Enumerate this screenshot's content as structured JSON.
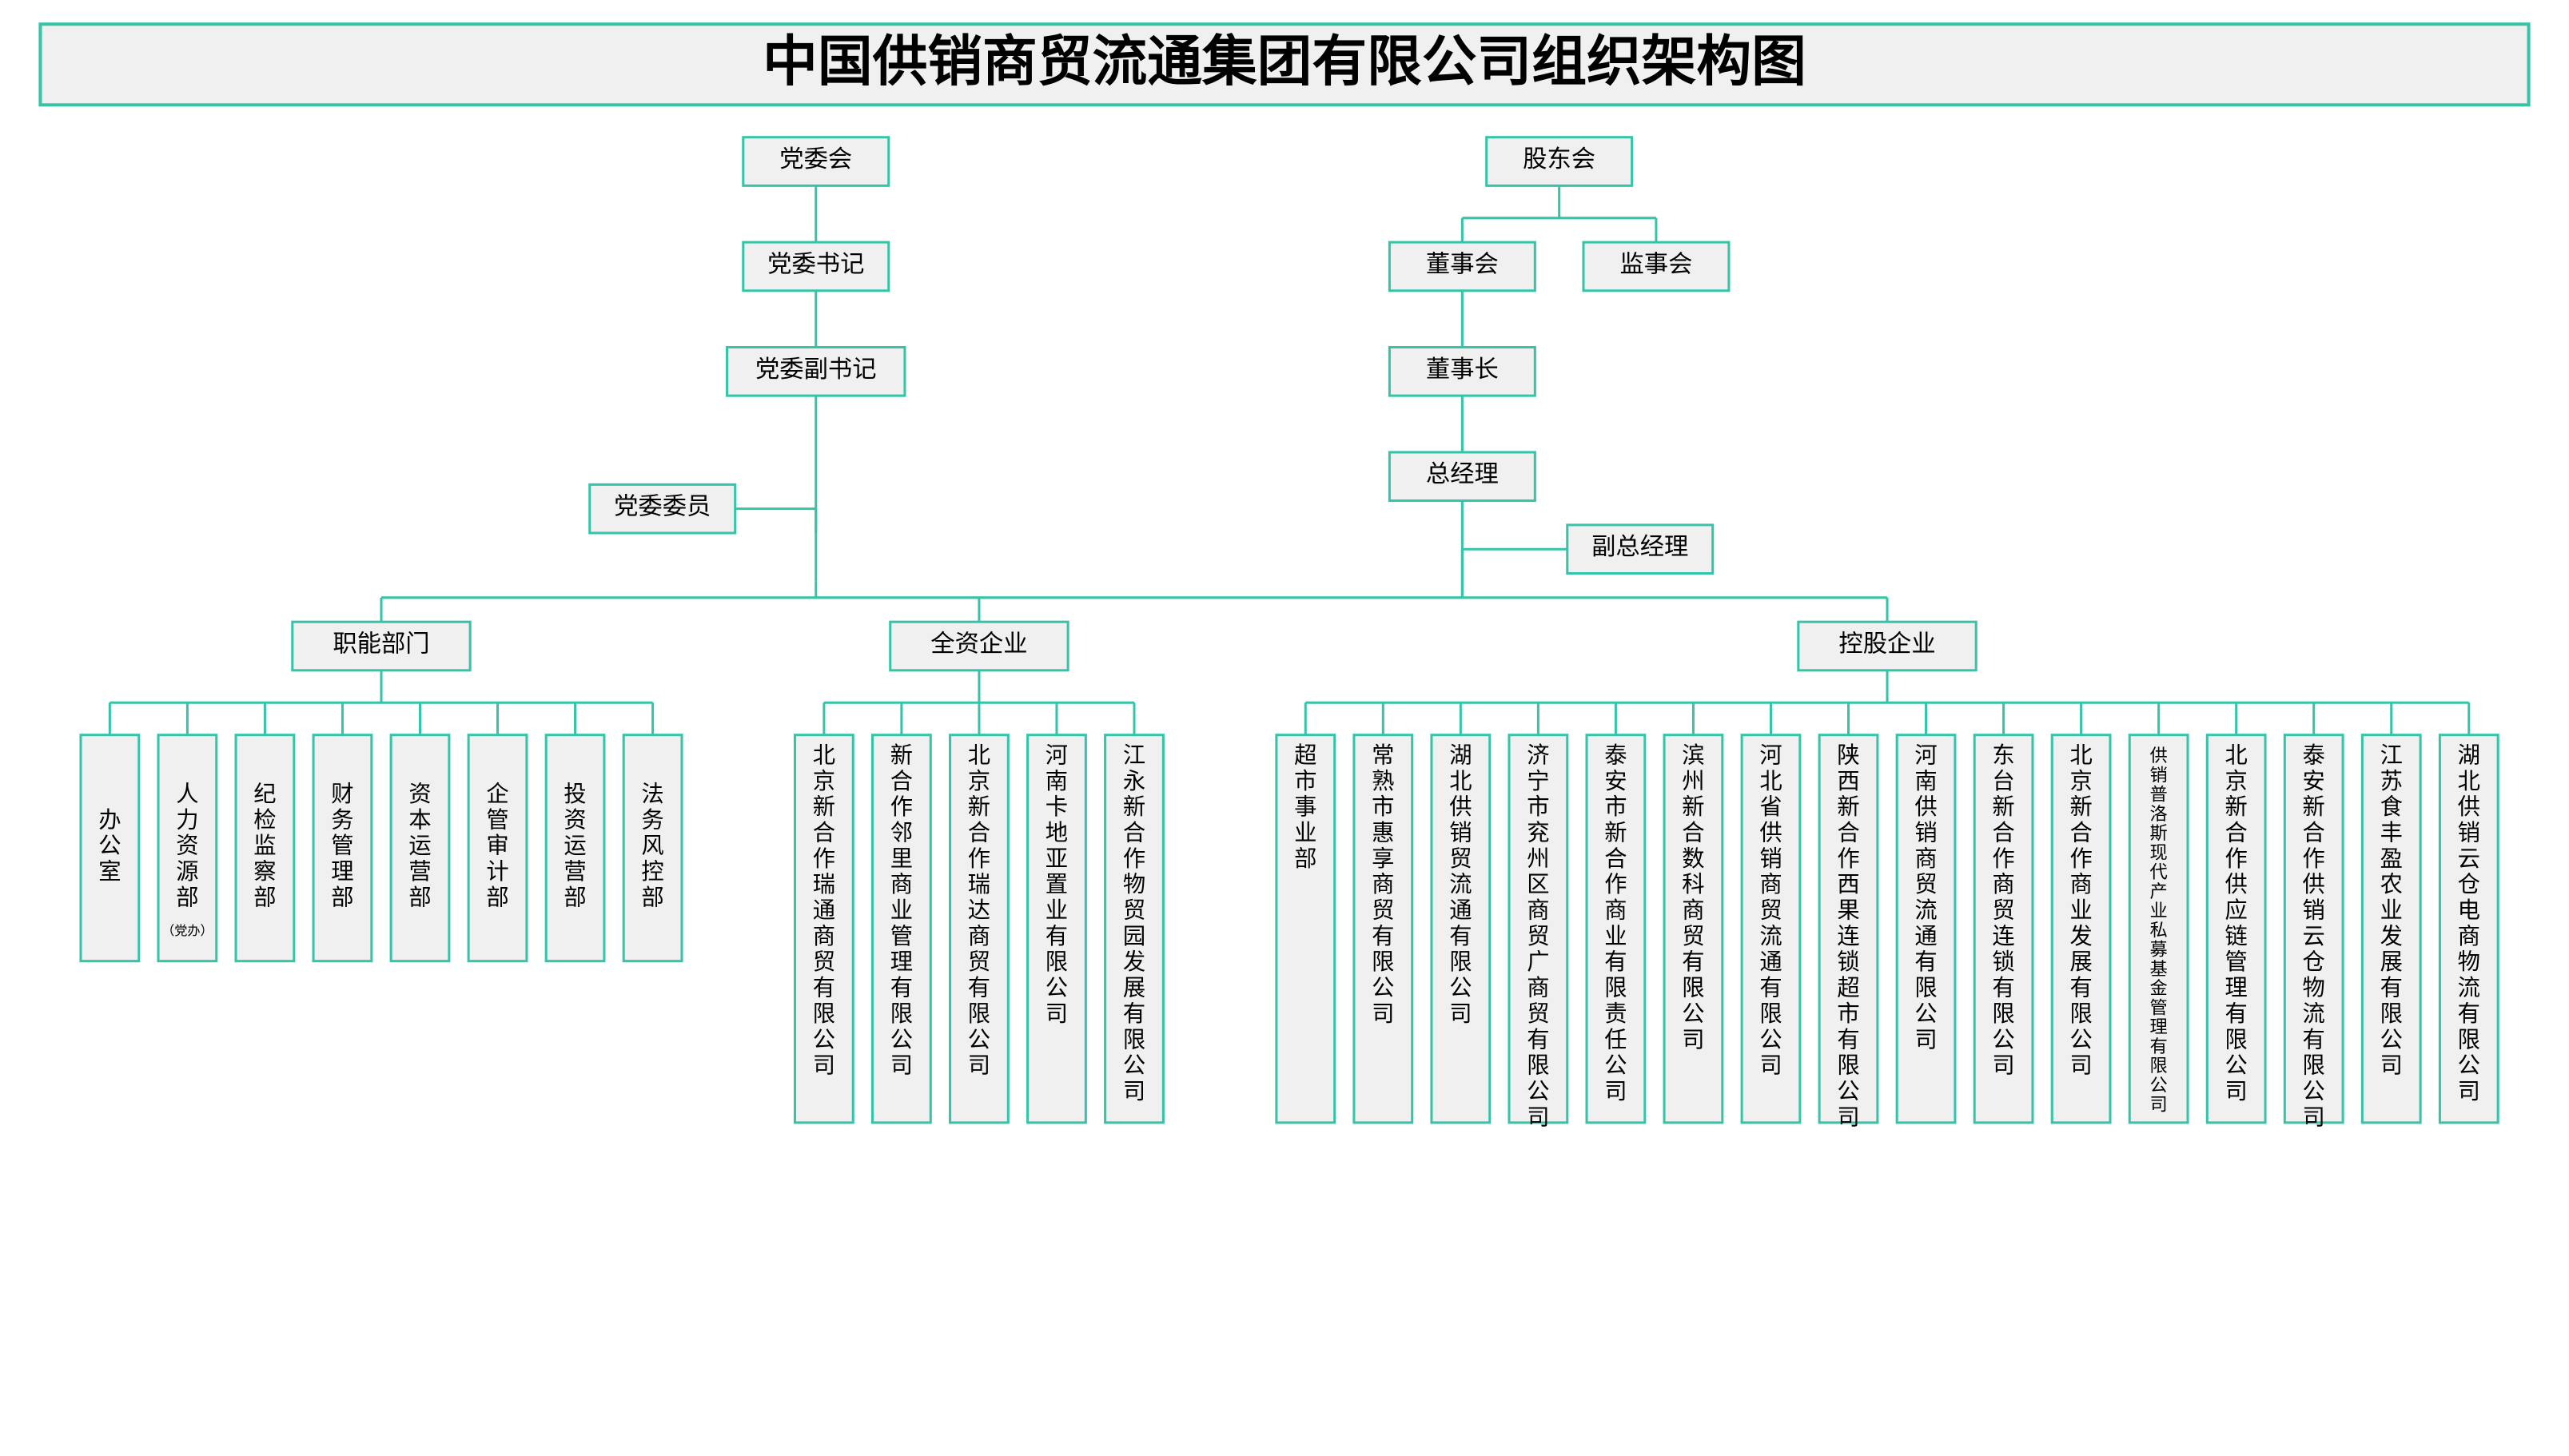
{
  "title": "中国供销商贸流通集团有限公司组织架构图",
  "colors": {
    "border": "#36c4a8",
    "fill": "#f0f0f0",
    "text": "#000000",
    "background": "#ffffff"
  },
  "leftChain": {
    "top": "党委会",
    "second": "党委书记",
    "third": "党委副书记",
    "branch": "党委委员"
  },
  "rightChain": {
    "top": "股东会",
    "boardL": "董事会",
    "boardR": "监事会",
    "chairman": "董事长",
    "gm": "总经理",
    "vgm": "副总经理"
  },
  "groups": [
    {
      "label": "职能部门",
      "items": [
        {
          "text": "办公室"
        },
        {
          "text": "人力资源部",
          "subtext": "（党办）"
        },
        {
          "text": "纪检监察部"
        },
        {
          "text": "财务管理部"
        },
        {
          "text": "资本运营部"
        },
        {
          "text": "企管审计部"
        },
        {
          "text": "投资运营部"
        },
        {
          "text": "法务风控部"
        }
      ]
    },
    {
      "label": "全资企业",
      "items": [
        {
          "text": "北京新合作瑞通商贸有限公司"
        },
        {
          "text": "新合作邻里商业管理有限公司"
        },
        {
          "text": "北京新合作瑞达商贸有限公司"
        },
        {
          "text": "河南卡地亚置业有限公司"
        },
        {
          "text": "江永新合作物贸园发展有限公司"
        }
      ]
    },
    {
      "label": "控股企业",
      "items": [
        {
          "text": "超市事业部"
        },
        {
          "text": "常熟市惠享商贸有限公司"
        },
        {
          "text": "湖北供销贸流通有限公司"
        },
        {
          "text": "济宁市兖州区商贸广商贸有限公司"
        },
        {
          "text": "泰安市新合作商业有限责任公司"
        },
        {
          "text": "滨州新合数科商贸有限公司"
        },
        {
          "text": "河北省供销商贸流通有限公司"
        },
        {
          "text": "陕西新合作西果连锁超市有限公司"
        },
        {
          "text": "河南供销商贸流通有限公司"
        },
        {
          "text": "东台新合作商贸连锁有限公司"
        },
        {
          "text": "北京新合作商业发展有限公司"
        },
        {
          "text": "供销普洛斯现代产业私募基金管理有限公司",
          "small": true
        },
        {
          "text": "北京新合作供应链管理有限公司"
        },
        {
          "text": "泰安新合作供销云仓物流有限公司"
        },
        {
          "text": "江苏食丰盈农业发展有限公司"
        },
        {
          "text": "湖北供销云仓电商物流有限公司"
        }
      ]
    }
  ]
}
